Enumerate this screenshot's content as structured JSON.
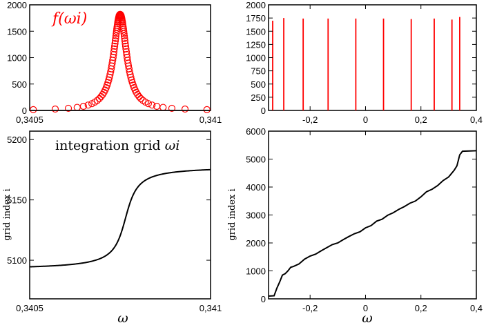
{
  "chart_data": [
    {
      "type": "scatter",
      "annotation": "f(ωi)",
      "x_ticks": [
        {
          "value": 0.3405,
          "label": "0,3405"
        },
        {
          "value": 0.341,
          "label": "0,341"
        }
      ],
      "y_ticks": [
        {
          "value": 0,
          "label": "0"
        },
        {
          "value": 500,
          "label": "500"
        },
        {
          "value": 1000,
          "label": "1000"
        },
        {
          "value": 1500,
          "label": "1500"
        },
        {
          "value": 2000,
          "label": "2000"
        }
      ],
      "xlim": [
        0.3405,
        0.341
      ],
      "ylim": [
        0,
        2000
      ],
      "color": "#ff0000",
      "lorentzian": {
        "center": 0.34075,
        "peak": 1820,
        "halfwidth": 2.15e-05
      },
      "x_range_points": [
        0.34051,
        0.34099
      ],
      "point_count": 100
    },
    {
      "type": "bar",
      "x_ticks": [
        {
          "value": -0.2,
          "label": "-0,2"
        },
        {
          "value": 0,
          "label": "0"
        },
        {
          "value": 0.2,
          "label": "0,2"
        },
        {
          "value": 0.4,
          "label": "0,4"
        }
      ],
      "y_ticks": [
        {
          "value": 0,
          "label": "0"
        },
        {
          "value": 250,
          "label": "250"
        },
        {
          "value": 500,
          "label": "500"
        },
        {
          "value": 750,
          "label": "750"
        },
        {
          "value": 1000,
          "label": "1000"
        },
        {
          "value": 1250,
          "label": "1250"
        },
        {
          "value": 1500,
          "label": "1500"
        },
        {
          "value": 1750,
          "label": "1750"
        },
        {
          "value": 2000,
          "label": "2000"
        }
      ],
      "xlim": [
        -0.35,
        0.4
      ],
      "ylim": [
        0,
        2000
      ],
      "color": "#ff0000",
      "peaks_x": [
        -0.335,
        -0.295,
        -0.225,
        -0.135,
        -0.035,
        0.065,
        0.165,
        0.248,
        0.312,
        0.34
      ],
      "peaks_y": [
        1700,
        1750,
        1740,
        1740,
        1740,
        1740,
        1730,
        1740,
        1720,
        1770
      ]
    },
    {
      "type": "line",
      "annotation_text": "integration grid ",
      "annotation_math": "ωi",
      "ylabel": "grid index i",
      "xlabel": "ω",
      "x_ticks": [
        {
          "value": 0.3405,
          "label": "0,3405"
        },
        {
          "value": 0.341,
          "label": "0,341"
        }
      ],
      "y_ticks": [
        {
          "value": 5100,
          "label": "5100"
        },
        {
          "value": 5150,
          "label": "5150"
        },
        {
          "value": 5200,
          "label": "5200"
        }
      ],
      "xlim": [
        0.3405,
        0.341
      ],
      "ylim": [
        5068,
        5207
      ],
      "color": "#000000",
      "atan_curve": {
        "center": 0.340765,
        "width": 2.5e-05,
        "mid": 5135,
        "amplitude": 43
      }
    },
    {
      "type": "line",
      "ylabel": "grid index i",
      "xlabel": "ω",
      "x_ticks": [
        {
          "value": -0.2,
          "label": "-0,2"
        },
        {
          "value": 0,
          "label": "0"
        },
        {
          "value": 0.2,
          "label": "0,2"
        },
        {
          "value": 0.4,
          "label": "0,4"
        }
      ],
      "y_ticks": [
        {
          "value": 0,
          "label": "0"
        },
        {
          "value": 1000,
          "label": "1000"
        },
        {
          "value": 2000,
          "label": "2000"
        },
        {
          "value": 3000,
          "label": "3000"
        },
        {
          "value": 4000,
          "label": "4000"
        },
        {
          "value": 5000,
          "label": "5000"
        },
        {
          "value": 6000,
          "label": "6000"
        }
      ],
      "xlim": [
        -0.35,
        0.4
      ],
      "ylim": [
        0,
        6000
      ],
      "color": "#000000",
      "points_x": [
        -0.35,
        -0.33,
        -0.32,
        -0.31,
        -0.3,
        -0.29,
        -0.28,
        -0.27,
        -0.26,
        -0.24,
        -0.22,
        -0.2,
        -0.18,
        -0.16,
        -0.14,
        -0.12,
        -0.1,
        -0.08,
        -0.06,
        -0.04,
        -0.02,
        0.0,
        0.02,
        0.04,
        0.06,
        0.08,
        0.1,
        0.12,
        0.14,
        0.16,
        0.18,
        0.2,
        0.22,
        0.24,
        0.26,
        0.28,
        0.3,
        0.31,
        0.32,
        0.33,
        0.34,
        0.35,
        0.4
      ],
      "points_y": [
        100,
        110,
        380,
        600,
        850,
        900,
        1000,
        1130,
        1160,
        1250,
        1420,
        1530,
        1600,
        1720,
        1830,
        1940,
        2000,
        2120,
        2230,
        2330,
        2400,
        2540,
        2620,
        2780,
        2850,
        2990,
        3080,
        3200,
        3300,
        3420,
        3500,
        3650,
        3830,
        3920,
        4050,
        4230,
        4360,
        4480,
        4600,
        4760,
        5150,
        5280,
        5300
      ]
    }
  ]
}
